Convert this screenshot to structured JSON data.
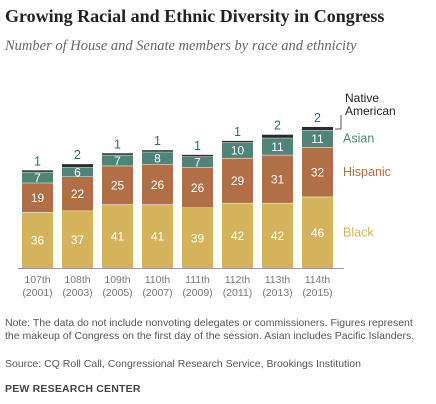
{
  "title": "Growing Racial and Ethnic Diversity in Congress",
  "subtitle": "Number of House and Senate members by race and ethnicity",
  "note": "Note: The data do not include nonvoting delegates or commissioners. Figures represent the makeup of Congress on the first day of the session. Asian includes Pacific Islanders.",
  "source": "Source: CQ Roll Call, Congressional Research Service, Brookings Institution",
  "org": "PEW RESEARCH CENTER",
  "chart_data": {
    "type": "bar",
    "stacked": true,
    "title": "Growing Racial and Ethnic Diversity in Congress",
    "subtitle": "Number of House and Senate members by race and ethnicity",
    "categories": [
      "107th|(2001)",
      "108th|(2003)",
      "109th|(2005)",
      "110th|(2007)",
      "111th|(2009)",
      "112th|(2011)",
      "113th|(2013)",
      "114th|(2015)"
    ],
    "series": [
      {
        "name": "Black",
        "values": [
          36,
          37,
          41,
          41,
          39,
          42,
          42,
          46
        ],
        "color": "#d4b35c",
        "label_color": "#ffffff"
      },
      {
        "name": "Hispanic",
        "values": [
          19,
          22,
          25,
          26,
          26,
          29,
          31,
          32
        ],
        "color": "#b06f45",
        "label_color": "#ffffff"
      },
      {
        "name": "Asian",
        "values": [
          7,
          6,
          7,
          8,
          7,
          10,
          11,
          11
        ],
        "color": "#4f8579",
        "label_color": "#ffffff"
      },
      {
        "name": "Native American",
        "values": [
          1,
          2,
          1,
          1,
          1,
          1,
          2,
          2
        ],
        "color": "#2b2b2b",
        "label_color": "#2b6e62"
      }
    ],
    "legend": [
      {
        "name": "Native|American",
        "color": "#222222"
      },
      {
        "name": "Asian",
        "color": "#4f8579"
      },
      {
        "name": "Hispanic",
        "color": "#b06f45"
      },
      {
        "name": "Black",
        "color": "#d4b35c"
      }
    ],
    "ylim": [
      0,
      93
    ],
    "xlabel": "",
    "ylabel": "",
    "grid": false,
    "legend_position": "right"
  }
}
